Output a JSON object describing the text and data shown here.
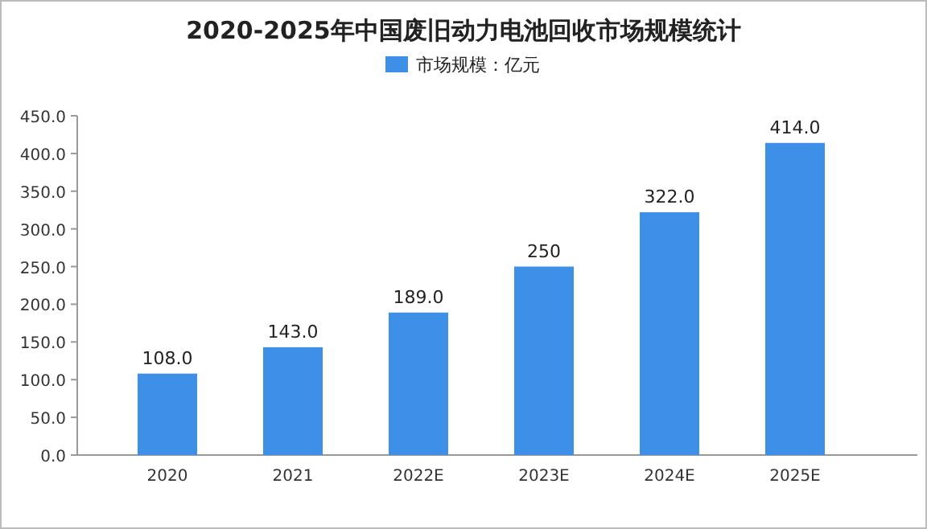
{
  "chart_data": {
    "type": "bar",
    "title": "2020-2025年中国废旧动力电池回收市场规模统计",
    "categories": [
      "2020",
      "2021",
      "2022E",
      "2023E",
      "2024E",
      "2025E"
    ],
    "series": [
      {
        "name": "市场规模：亿元",
        "color": "#3d8fe8",
        "values": [
          108.0,
          143.0,
          189.0,
          250,
          322.0,
          414.0
        ],
        "value_labels": [
          "108.0",
          "143.0",
          "189.0",
          "250",
          "322.0",
          "414.0"
        ]
      }
    ],
    "ylim": [
      0,
      450
    ],
    "yticks": [
      {
        "value": 0,
        "label": "0.0"
      },
      {
        "value": 50,
        "label": "50.0"
      },
      {
        "value": 100,
        "label": "100.0"
      },
      {
        "value": 150,
        "label": "150.0"
      },
      {
        "value": 200,
        "label": "200.0"
      },
      {
        "value": 250,
        "label": "250.0"
      },
      {
        "value": 300,
        "label": "300.0"
      },
      {
        "value": 350,
        "label": "350.0"
      },
      {
        "value": 400,
        "label": "400.0"
      },
      {
        "value": 450,
        "label": "450.0"
      }
    ],
    "legend": "top"
  }
}
